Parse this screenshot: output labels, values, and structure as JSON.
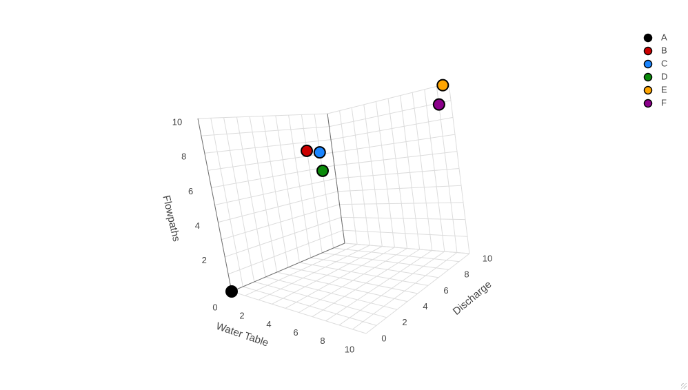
{
  "chart_data": {
    "type": "scatter3d",
    "axes": {
      "x": {
        "title": "Water Table",
        "range": [
          0,
          10
        ],
        "ticks": [
          0,
          2,
          4,
          6,
          8,
          10
        ]
      },
      "y": {
        "title": "Discharge",
        "range": [
          0,
          10
        ],
        "ticks": [
          0,
          2,
          4,
          6,
          8,
          10
        ]
      },
      "z": {
        "title": "Flowpaths",
        "range": [
          0,
          10
        ],
        "ticks": [
          2,
          4,
          6,
          8,
          10
        ]
      }
    },
    "grid": true,
    "legend_position": "top-right",
    "series": [
      {
        "name": "A",
        "color": "#000000",
        "x": 0,
        "y": 0,
        "z": 0
      },
      {
        "name": "B",
        "color": "#cc0000",
        "x": 2,
        "y": 6,
        "z": 7.5
      },
      {
        "name": "C",
        "color": "#1a85ff",
        "x": 2.5,
        "y": 6.5,
        "z": 7.3
      },
      {
        "name": "D",
        "color": "#0a8a0a",
        "x": 3,
        "y": 6,
        "z": 6.2
      },
      {
        "name": "E",
        "color": "#ffa500",
        "x": 10,
        "y": 9.5,
        "z": 10
      },
      {
        "name": "F",
        "color": "#8b008b",
        "x": 10,
        "y": 9,
        "z": 9
      }
    ]
  }
}
